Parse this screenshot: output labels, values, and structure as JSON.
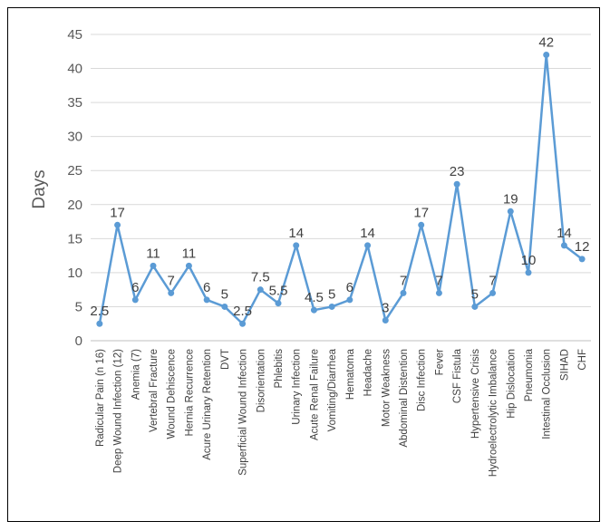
{
  "chart_data": {
    "type": "line",
    "title": "",
    "xlabel": "",
    "ylabel": "Days",
    "ylim": [
      0,
      45
    ],
    "yticks": [
      0,
      5,
      10,
      15,
      20,
      25,
      30,
      35,
      40,
      45
    ],
    "grid": "horizontal",
    "legend": "none",
    "categories": [
      "Radicular Pain (n 16)",
      "Deep Wound Infection (12)",
      "Anemia (7)",
      "Vertebral Fracture",
      "Wound Dehiscence",
      "Hernia Recurrence",
      "Acure Urinary Retention",
      "DVT",
      "Superficial Wound Infection",
      "Disorientation",
      "Phlebitis",
      "Urinary Infection",
      "Acute Renal Failure",
      "Vomiting/Diarrhea",
      "Hematoma",
      "Headache",
      "Motor Weakness",
      "Abdominal Distention",
      "Disc Infection",
      "Fever",
      "CSF Fistula",
      "Hypertensive Crisis",
      "Hydroelectrolytic Imbalance",
      "Hip Dislocation",
      "Pneumonia",
      "Intestinal Occlusion",
      "SIHAD",
      "CHF"
    ],
    "series": [
      {
        "values": [
          2.5,
          17,
          6,
          11,
          7,
          11,
          6,
          5,
          2.5,
          7.5,
          5.5,
          14,
          4.5,
          5,
          6,
          14,
          3,
          7,
          17,
          7,
          23,
          5,
          7,
          19,
          10,
          42,
          14,
          12
        ]
      }
    ],
    "data_labels": [
      "2.5",
      "17",
      "6",
      "11",
      "7",
      "11",
      "6",
      "5",
      "2.5",
      "7.5",
      "5.5",
      "14",
      "4.5",
      "5",
      "6",
      "14",
      "3",
      "7",
      "17",
      "7",
      "23",
      "5",
      "7",
      "19",
      "10",
      "42",
      "14",
      "12"
    ],
    "colors": {
      "line": "#5B9BD5",
      "gridline": "#D9D9D9",
      "axis": "#BFBFBF",
      "text": "#595959"
    }
  }
}
